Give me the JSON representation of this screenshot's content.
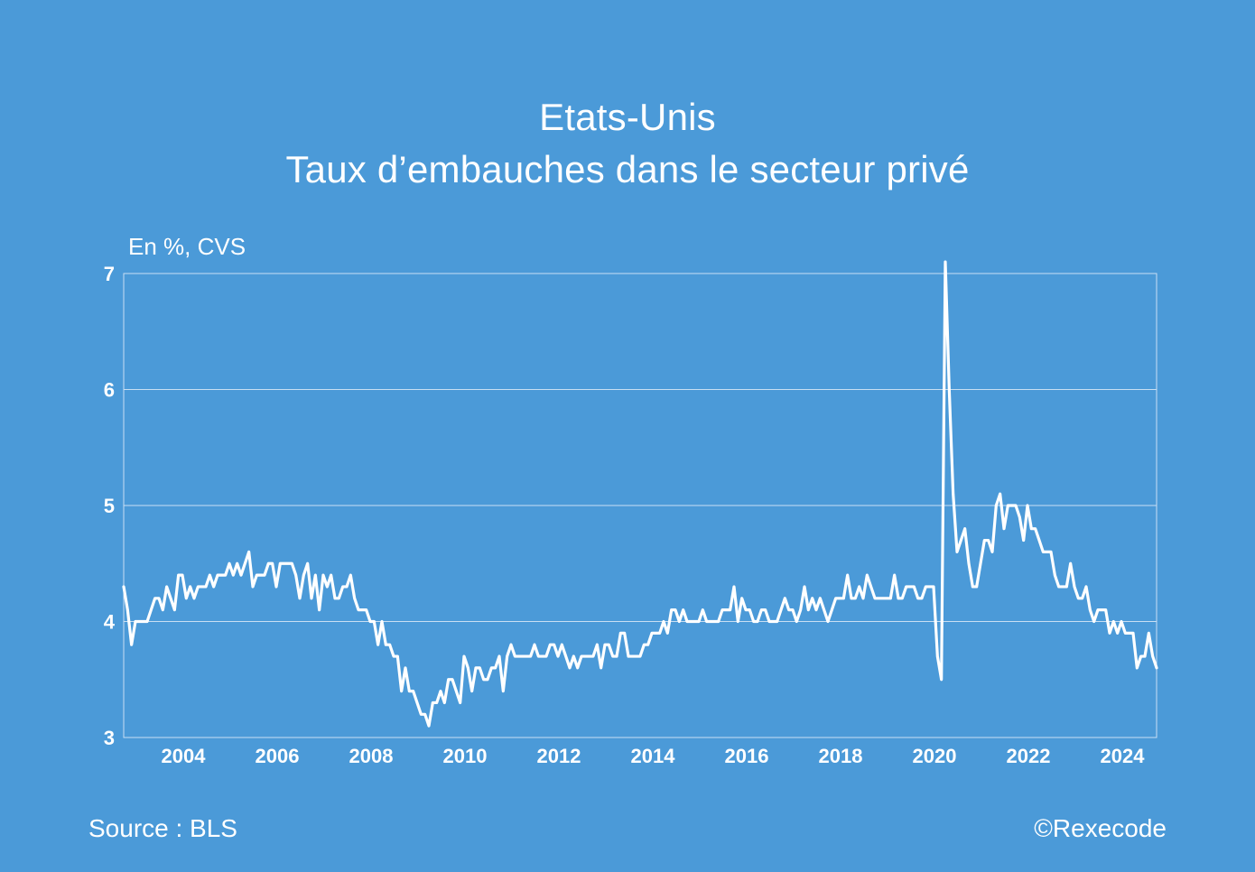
{
  "chart_data": {
    "type": "line",
    "title": "Etats-Unis",
    "subtitle": "Taux d’embauches dans le secteur privé",
    "ylabel": "En %, CVS",
    "xlabel": "",
    "ylim": [
      3,
      7
    ],
    "xlim": [
      2003.0,
      2025.0
    ],
    "yticks": [
      "3",
      "4",
      "5",
      "6",
      "7"
    ],
    "xticks": [
      "2004",
      "2006",
      "2008",
      "2010",
      "2012",
      "2014",
      "2016",
      "2018",
      "2020",
      "2022",
      "2024"
    ],
    "grid": true,
    "series": [
      {
        "name": "Taux d’embauches",
        "color": "#ffffff",
        "start": 2003.0,
        "step_months": 1,
        "values": [
          4.3,
          4.1,
          3.8,
          4.0,
          4.0,
          4.0,
          4.0,
          4.1,
          4.2,
          4.2,
          4.1,
          4.3,
          4.2,
          4.1,
          4.4,
          4.4,
          4.2,
          4.3,
          4.2,
          4.3,
          4.3,
          4.3,
          4.4,
          4.3,
          4.4,
          4.4,
          4.4,
          4.5,
          4.4,
          4.5,
          4.4,
          4.5,
          4.6,
          4.3,
          4.4,
          4.4,
          4.4,
          4.5,
          4.5,
          4.3,
          4.5,
          4.5,
          4.5,
          4.5,
          4.4,
          4.2,
          4.4,
          4.5,
          4.2,
          4.4,
          4.1,
          4.4,
          4.3,
          4.4,
          4.2,
          4.2,
          4.3,
          4.3,
          4.4,
          4.2,
          4.1,
          4.1,
          4.1,
          4.0,
          4.0,
          3.8,
          4.0,
          3.8,
          3.8,
          3.7,
          3.7,
          3.4,
          3.6,
          3.4,
          3.4,
          3.3,
          3.2,
          3.2,
          3.1,
          3.3,
          3.3,
          3.4,
          3.3,
          3.5,
          3.5,
          3.4,
          3.3,
          3.7,
          3.6,
          3.4,
          3.6,
          3.6,
          3.5,
          3.5,
          3.6,
          3.6,
          3.7,
          3.4,
          3.7,
          3.8,
          3.7,
          3.7,
          3.7,
          3.7,
          3.7,
          3.8,
          3.7,
          3.7,
          3.7,
          3.8,
          3.8,
          3.7,
          3.8,
          3.7,
          3.6,
          3.7,
          3.6,
          3.7,
          3.7,
          3.7,
          3.7,
          3.8,
          3.6,
          3.8,
          3.8,
          3.7,
          3.7,
          3.9,
          3.9,
          3.7,
          3.7,
          3.7,
          3.7,
          3.8,
          3.8,
          3.9,
          3.9,
          3.9,
          4.0,
          3.9,
          4.1,
          4.1,
          4.0,
          4.1,
          4.0,
          4.0,
          4.0,
          4.0,
          4.1,
          4.0,
          4.0,
          4.0,
          4.0,
          4.1,
          4.1,
          4.1,
          4.3,
          4.0,
          4.2,
          4.1,
          4.1,
          4.0,
          4.0,
          4.1,
          4.1,
          4.0,
          4.0,
          4.0,
          4.1,
          4.2,
          4.1,
          4.1,
          4.0,
          4.1,
          4.3,
          4.1,
          4.2,
          4.1,
          4.2,
          4.1,
          4.0,
          4.1,
          4.2,
          4.2,
          4.2,
          4.4,
          4.2,
          4.2,
          4.3,
          4.2,
          4.4,
          4.3,
          4.2,
          4.2,
          4.2,
          4.2,
          4.2,
          4.4,
          4.2,
          4.2,
          4.3,
          4.3,
          4.3,
          4.2,
          4.2,
          4.3,
          4.3,
          4.3,
          3.7,
          3.5,
          7.1,
          6.0,
          5.1,
          4.6,
          4.7,
          4.8,
          4.5,
          4.3,
          4.3,
          4.5,
          4.7,
          4.7,
          4.6,
          5.0,
          5.1,
          4.8,
          5.0,
          5.0,
          5.0,
          4.9,
          4.7,
          5.0,
          4.8,
          4.8,
          4.7,
          4.6,
          4.6,
          4.6,
          4.4,
          4.3,
          4.3,
          4.3,
          4.5,
          4.3,
          4.2,
          4.2,
          4.3,
          4.1,
          4.0,
          4.1,
          4.1,
          4.1,
          3.9,
          4.0,
          3.9,
          4.0,
          3.9,
          3.9,
          3.9,
          3.6,
          3.7,
          3.7,
          3.9,
          3.7,
          3.6
        ]
      }
    ]
  },
  "source_text": "Source : BLS",
  "copyright_text": "©Rexecode"
}
